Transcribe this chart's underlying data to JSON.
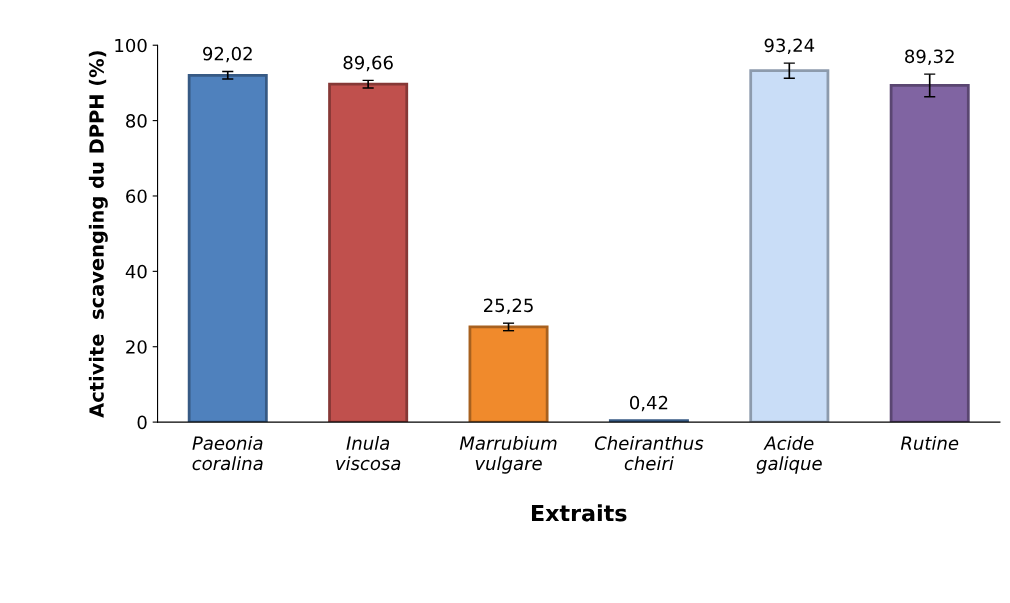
{
  "chart_data": {
    "type": "bar",
    "xlabel": "Extraits",
    "ylabel": "Activite  scavenging du DPPH (%)",
    "categories": [
      "Paeonia\ncoralina",
      "Inula\nviscosa",
      "Marrubium\nvulgare",
      "Cheiranthus\ncheiri",
      "Acide\ngalique",
      "Rutine"
    ],
    "values": [
      92.02,
      89.66,
      25.25,
      0.42,
      93.24,
      89.32
    ],
    "value_labels": [
      "92,02",
      "89,66",
      "25,25",
      "0,42",
      "93,24",
      "89,32"
    ],
    "errors": [
      1,
      1,
      1,
      null,
      2,
      3
    ],
    "colors": [
      "#4f81bd",
      "#c0504d",
      "#f08a2c",
      "#4f81bd",
      "#c9ddf7",
      "#8064a2"
    ],
    "ylim": [
      0,
      100
    ],
    "yticks": [
      0,
      20,
      40,
      60,
      80,
      100
    ],
    "grid": false,
    "legend": false
  }
}
